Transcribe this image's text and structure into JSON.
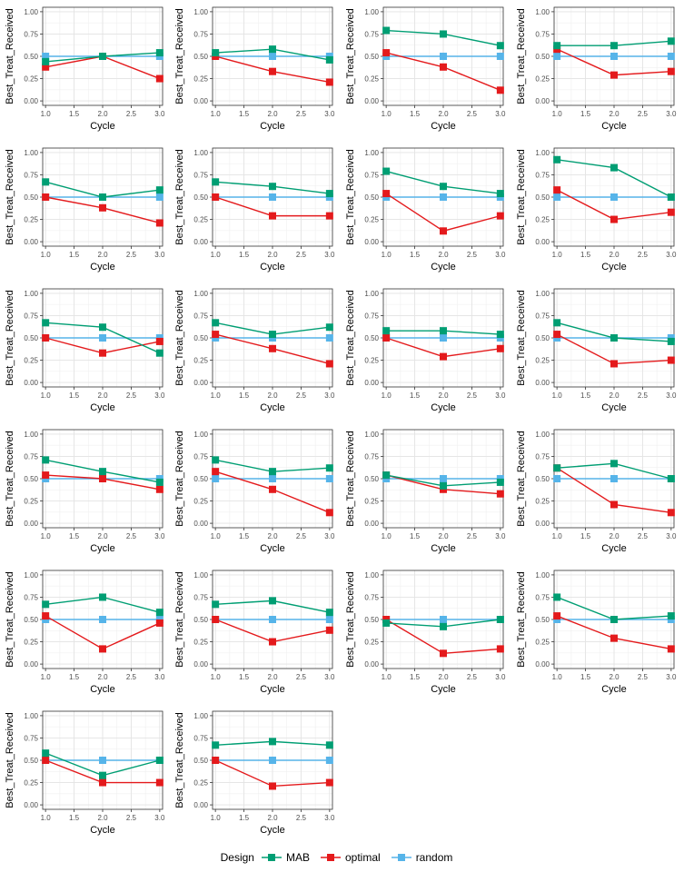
{
  "chart_data": {
    "type": "line",
    "x": [
      1,
      2,
      3
    ],
    "xlabel": "Cycle",
    "ylabel": "Best_Treat_Received",
    "xticks": [
      "1.0",
      "1.5",
      "2.0",
      "2.5",
      "3.0"
    ],
    "yticks": [
      "0.00",
      "0.25",
      "0.50",
      "0.75",
      "1.00"
    ],
    "xlim": [
      0.95,
      3.05
    ],
    "ylim": [
      -0.05,
      1.05
    ],
    "grid": true,
    "legend_position": "bottom",
    "legend_title": "Design",
    "series_styles": [
      {
        "name": "MAB",
        "color": "#009E73"
      },
      {
        "name": "optimal",
        "color": "#E41A1C"
      },
      {
        "name": "random",
        "color": "#56B4E9"
      }
    ],
    "panels": [
      {
        "MAB": [
          0.44,
          0.5,
          0.54
        ],
        "optimal": [
          0.38,
          0.5,
          0.25
        ],
        "random": [
          0.5,
          0.5,
          0.5
        ]
      },
      {
        "MAB": [
          0.54,
          0.58,
          0.46
        ],
        "optimal": [
          0.5,
          0.33,
          0.21
        ],
        "random": [
          0.5,
          0.5,
          0.5
        ]
      },
      {
        "MAB": [
          0.79,
          0.75,
          0.62
        ],
        "optimal": [
          0.54,
          0.38,
          0.12
        ],
        "random": [
          0.5,
          0.5,
          0.5
        ]
      },
      {
        "MAB": [
          0.62,
          0.62,
          0.67
        ],
        "optimal": [
          0.58,
          0.29,
          0.33
        ],
        "random": [
          0.5,
          0.5,
          0.5
        ]
      },
      {
        "MAB": [
          0.67,
          0.5,
          0.58
        ],
        "optimal": [
          0.5,
          0.38,
          0.21
        ],
        "random": [
          0.5,
          0.5,
          0.5
        ]
      },
      {
        "MAB": [
          0.67,
          0.62,
          0.54
        ],
        "optimal": [
          0.5,
          0.29,
          0.29
        ],
        "random": [
          0.5,
          0.5,
          0.5
        ]
      },
      {
        "MAB": [
          0.79,
          0.62,
          0.54
        ],
        "optimal": [
          0.54,
          0.12,
          0.29
        ],
        "random": [
          0.5,
          0.5,
          0.5
        ]
      },
      {
        "MAB": [
          0.92,
          0.83,
          0.5
        ],
        "optimal": [
          0.58,
          0.25,
          0.33
        ],
        "random": [
          0.5,
          0.5,
          0.5
        ]
      },
      {
        "MAB": [
          0.67,
          0.62,
          0.33
        ],
        "optimal": [
          0.5,
          0.33,
          0.46
        ],
        "random": [
          0.5,
          0.5,
          0.5
        ]
      },
      {
        "MAB": [
          0.67,
          0.54,
          0.62
        ],
        "optimal": [
          0.54,
          0.38,
          0.21
        ],
        "random": [
          0.5,
          0.5,
          0.5
        ]
      },
      {
        "MAB": [
          0.58,
          0.58,
          0.54
        ],
        "optimal": [
          0.5,
          0.29,
          0.38
        ],
        "random": [
          0.5,
          0.5,
          0.5
        ]
      },
      {
        "MAB": [
          0.67,
          0.5,
          0.46
        ],
        "optimal": [
          0.54,
          0.21,
          0.25
        ],
        "random": [
          0.5,
          0.5,
          0.5
        ]
      },
      {
        "MAB": [
          0.71,
          0.58,
          0.46
        ],
        "optimal": [
          0.54,
          0.5,
          0.38
        ],
        "random": [
          0.5,
          0.5,
          0.5
        ]
      },
      {
        "MAB": [
          0.71,
          0.58,
          0.62
        ],
        "optimal": [
          0.58,
          0.38,
          0.12
        ],
        "random": [
          0.5,
          0.5,
          0.5
        ]
      },
      {
        "MAB": [
          0.54,
          0.42,
          0.46
        ],
        "optimal": [
          0.54,
          0.38,
          0.33
        ],
        "random": [
          0.5,
          0.5,
          0.5
        ]
      },
      {
        "MAB": [
          0.62,
          0.67,
          0.5
        ],
        "optimal": [
          0.62,
          0.21,
          0.12
        ],
        "random": [
          0.5,
          0.5,
          0.5
        ]
      },
      {
        "MAB": [
          0.67,
          0.75,
          0.58
        ],
        "optimal": [
          0.54,
          0.17,
          0.46
        ],
        "random": [
          0.5,
          0.5,
          0.5
        ]
      },
      {
        "MAB": [
          0.67,
          0.71,
          0.58
        ],
        "optimal": [
          0.5,
          0.25,
          0.38
        ],
        "random": [
          0.5,
          0.5,
          0.5
        ]
      },
      {
        "MAB": [
          0.46,
          0.42,
          0.5
        ],
        "optimal": [
          0.5,
          0.12,
          0.17
        ],
        "random": [
          0.5,
          0.5,
          0.5
        ]
      },
      {
        "MAB": [
          0.75,
          0.5,
          0.54
        ],
        "optimal": [
          0.54,
          0.29,
          0.17
        ],
        "random": [
          0.5,
          0.5,
          0.5
        ]
      },
      {
        "MAB": [
          0.58,
          0.33,
          0.5
        ],
        "optimal": [
          0.5,
          0.25,
          0.25
        ],
        "random": [
          0.5,
          0.5,
          0.5
        ]
      },
      {
        "MAB": [
          0.67,
          0.71,
          0.67
        ],
        "optimal": [
          0.5,
          0.21,
          0.25
        ],
        "random": [
          0.5,
          0.5,
          0.5
        ]
      }
    ]
  }
}
